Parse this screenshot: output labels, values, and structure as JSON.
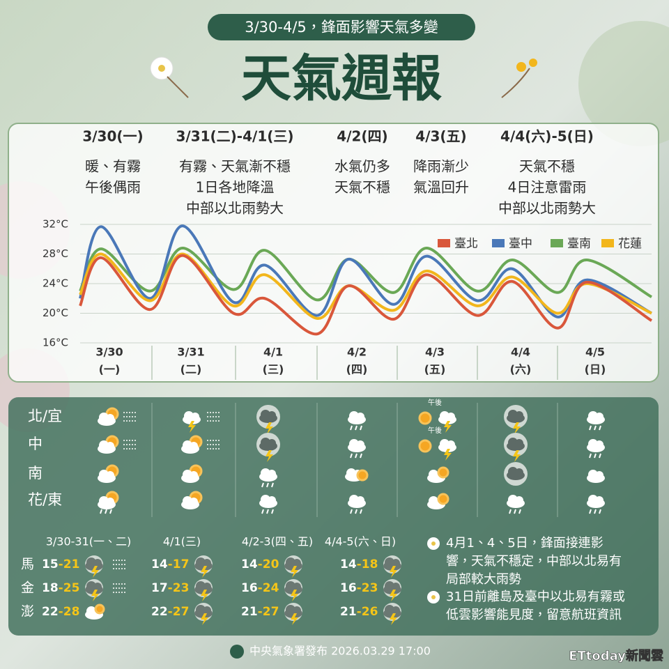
{
  "header": {
    "subtitle": "3/30-4/5，鋒面影響天氣多變",
    "title": "天氣週報"
  },
  "daily_summary": [
    {
      "date": "3/30(一)",
      "lines": [
        "暖、有霧",
        "午後偶雨"
      ]
    },
    {
      "date": "3/31(二)-4/1(三)",
      "lines": [
        "有霧、天氣漸不穩",
        "1日各地降溫",
        "中部以北雨勢大"
      ]
    },
    {
      "date": "4/2(四)",
      "lines": [
        "水氣仍多",
        "天氣不穩"
      ]
    },
    {
      "date": "4/3(五)",
      "lines": [
        "降雨漸少",
        "氣溫回升"
      ]
    },
    {
      "date": "4/4(六)-5(日)",
      "lines": [
        "天氣不穩",
        "4日注意雷雨",
        "中部以北雨勢大"
      ]
    }
  ],
  "chart_data": {
    "type": "line",
    "categories": [
      null,
      "3/30",
      null,
      "3/31",
      null,
      "4/1",
      null,
      "4/2",
      null,
      "4/3",
      null,
      "4/4",
      null,
      "4/5",
      null
    ],
    "category_sublabels": [
      null,
      "(一)",
      null,
      "(二)",
      null,
      "(三)",
      null,
      "(四)",
      null,
      "(五)",
      null,
      "(六)",
      null,
      "(日)",
      null
    ],
    "ylim": [
      16,
      32
    ],
    "yticks": [
      {
        "value": 16,
        "label": "16°C"
      },
      {
        "value": 20,
        "label": "20°C"
      },
      {
        "value": 24,
        "label": "24°C"
      },
      {
        "value": 28,
        "label": "28°C"
      },
      {
        "value": 32,
        "label": "32°C"
      }
    ],
    "grid": true,
    "legend": "top-right",
    "series": [
      {
        "name": "臺北",
        "color": "#d9573b",
        "values": [
          21,
          27.5,
          20.5,
          27.8,
          20,
          22,
          17.2,
          23.7,
          19.2,
          25.2,
          19.7,
          24.3,
          18,
          24.2,
          19
        ]
      },
      {
        "name": "臺中",
        "color": "#4a78b8",
        "values": [
          22,
          31.7,
          22,
          31.8,
          21.5,
          26.5,
          19.7,
          27.3,
          21.2,
          27.7,
          21.7,
          26,
          19.5,
          24.5,
          20
        ]
      },
      {
        "name": "臺南",
        "color": "#6aa856",
        "values": [
          23,
          28.7,
          23,
          28.8,
          23.2,
          28.5,
          21.8,
          27.3,
          22.8,
          28.8,
          23,
          27.2,
          22.8,
          27.2,
          22.2
        ]
      },
      {
        "name": "花蓮",
        "color": "#f2b61c",
        "values": [
          22.5,
          28,
          21.7,
          28,
          21,
          25.2,
          19.3,
          23.7,
          20.4,
          25.7,
          21,
          24.9,
          20,
          24,
          20
        ]
      }
    ]
  },
  "weather_grid": {
    "regions": [
      {
        "name": "北/宜",
        "notes": [
          null,
          null,
          null,
          null,
          "午後",
          null,
          null
        ]
      },
      {
        "name": "中",
        "notes": [
          null,
          null,
          null,
          null,
          "午後",
          null,
          null
        ]
      },
      {
        "name": "南",
        "notes": [
          null,
          null,
          null,
          null,
          null,
          null,
          null
        ]
      },
      {
        "name": "花/東",
        "notes": [
          null,
          null,
          null,
          null,
          null,
          null,
          null
        ]
      }
    ]
  },
  "islands": {
    "periods": [
      "3/30-31(一、二)",
      "4/1(三)",
      "4/2-3(四、五)",
      "4/4-5(六、日)"
    ],
    "range_separator": "-",
    "rows": [
      {
        "name": "馬",
        "ranges": [
          {
            "low": 15,
            "high": 21
          },
          {
            "low": 14,
            "high": 17
          },
          {
            "low": 14,
            "high": 20
          },
          {
            "low": 14,
            "high": 18
          }
        ]
      },
      {
        "name": "金",
        "ranges": [
          {
            "low": 18,
            "high": 25
          },
          {
            "low": 17,
            "high": 23
          },
          {
            "low": 16,
            "high": 24
          },
          {
            "low": 16,
            "high": 23
          }
        ]
      },
      {
        "name": "澎",
        "ranges": [
          {
            "low": 22,
            "high": 28
          },
          {
            "low": 22,
            "high": 27
          },
          {
            "low": 21,
            "high": 27
          },
          {
            "low": 21,
            "high": 26
          }
        ]
      }
    ]
  },
  "notes": [
    {
      "lines": [
        "4月1、4、5日，鋒面接連影",
        "響，天氣不穩定，中部以北易有",
        "局部較大雨勢"
      ]
    },
    {
      "lines": [
        "31日前離島及臺中以北易有霧或",
        "低雲影響能見度，留意航班資訊"
      ]
    }
  ],
  "footer": {
    "issuer": "中央氣象署發布 2026.03.29 17:00",
    "watermark": "ETtoday新聞雲"
  }
}
